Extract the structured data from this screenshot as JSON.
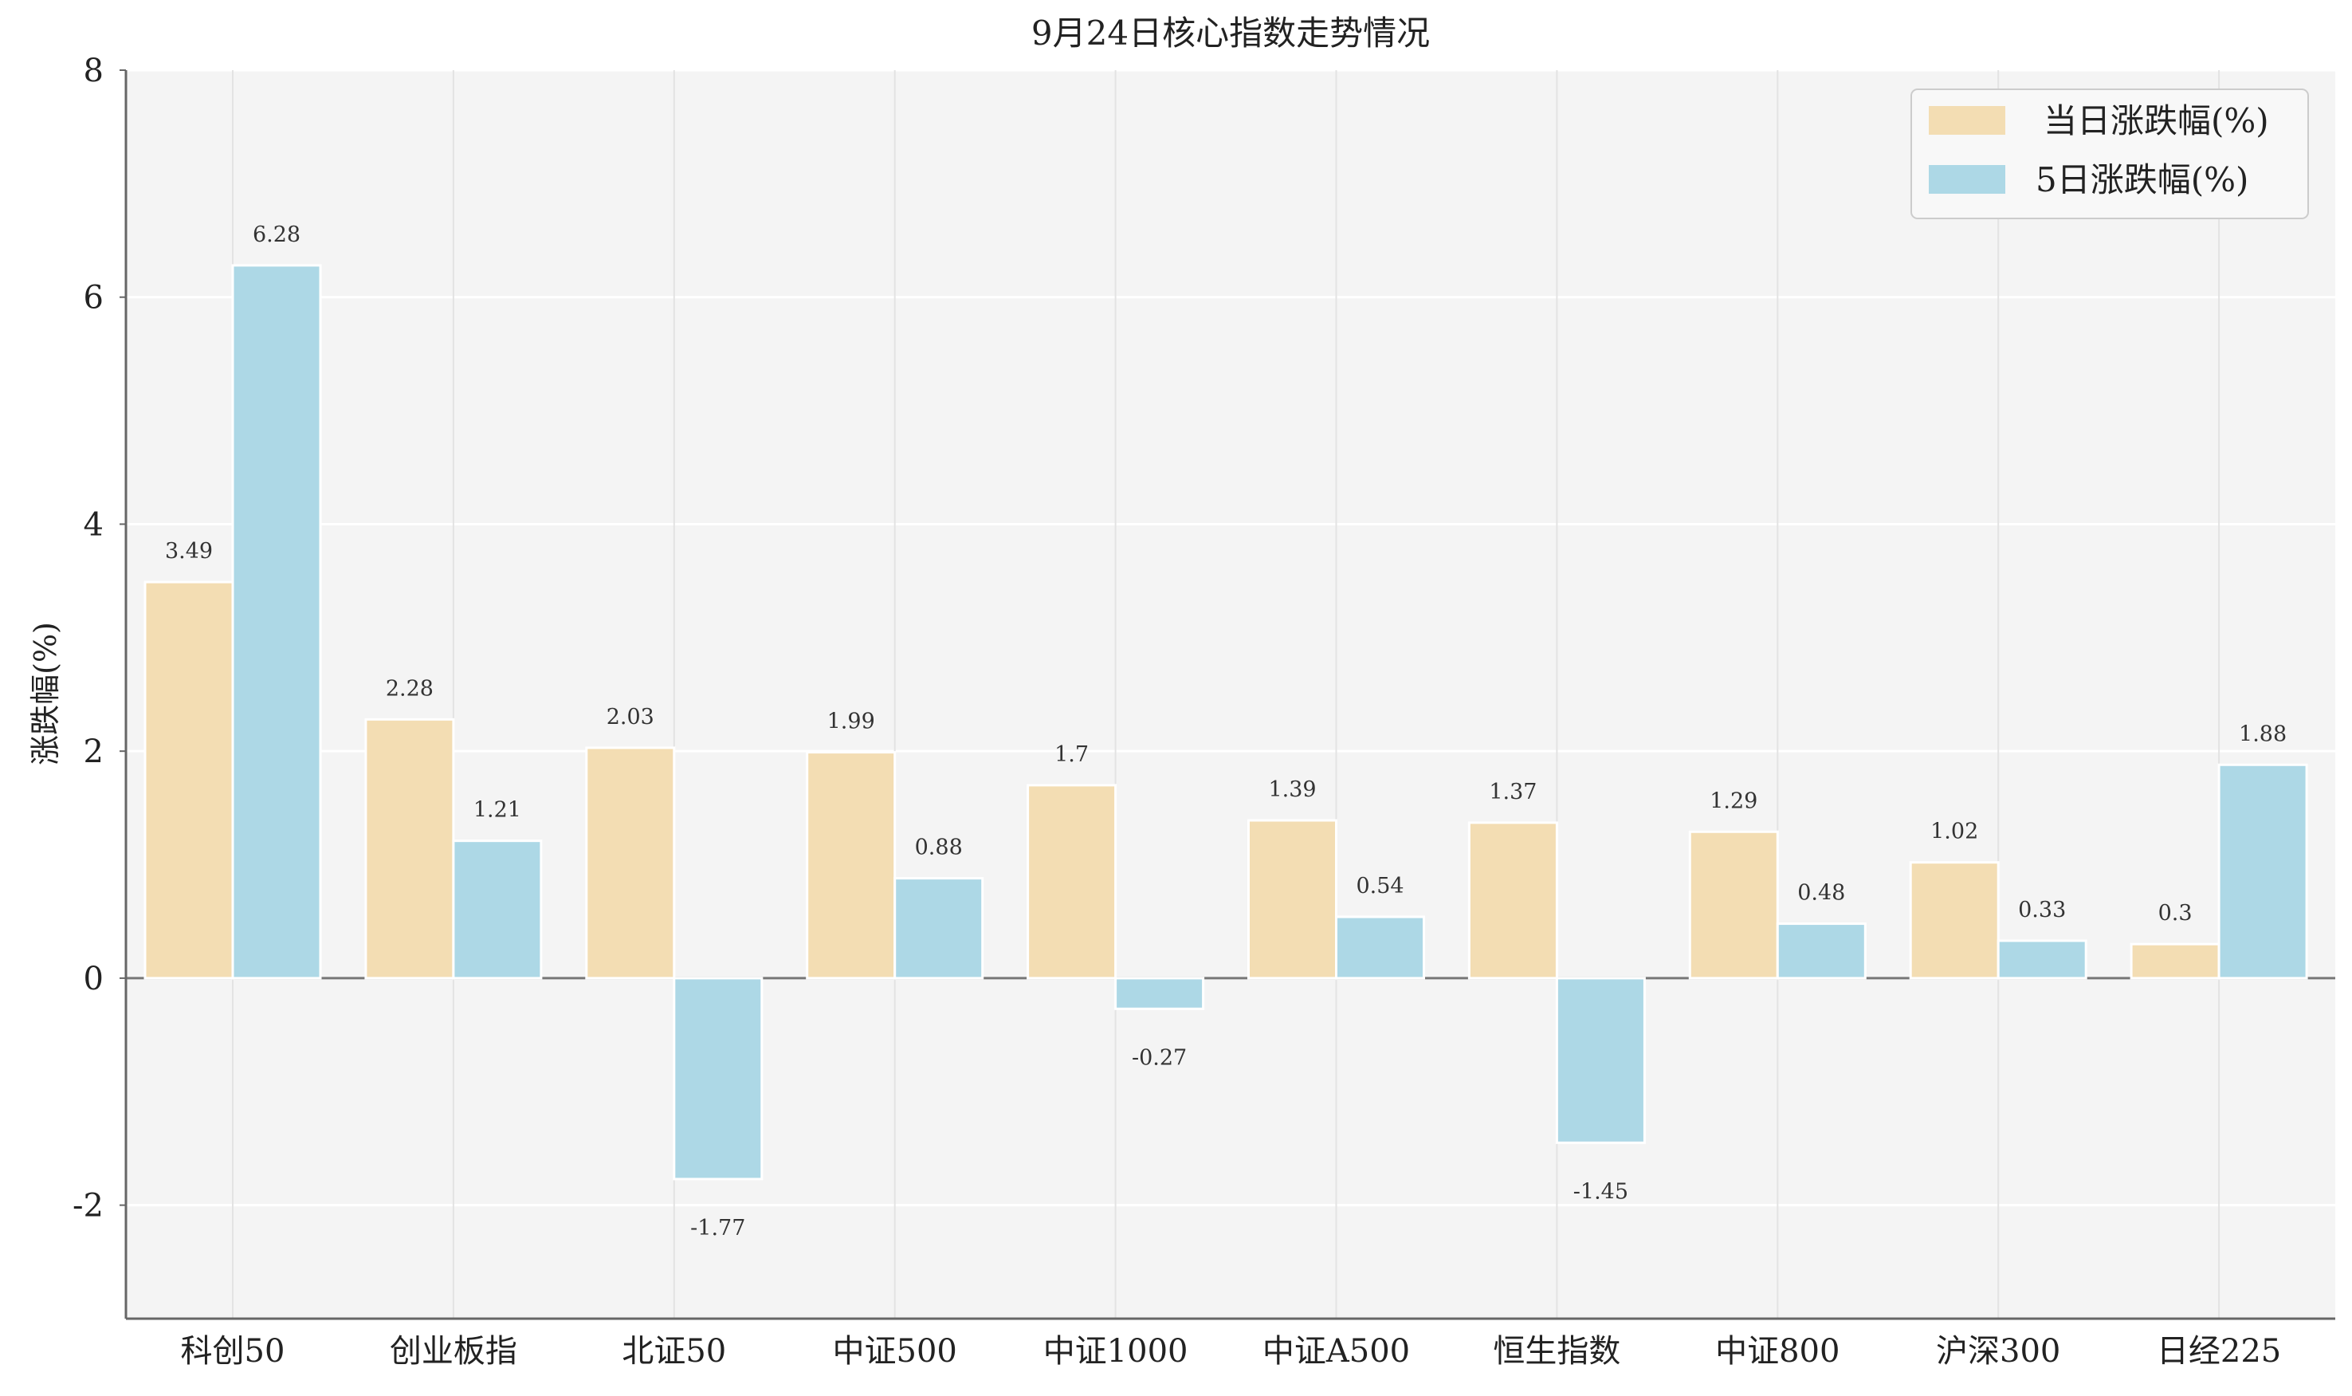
{
  "chart_data": {
    "type": "bar",
    "title": "9月24日核心指数走势情况",
    "xlabel": "",
    "ylabel": "涨跌幅(%)",
    "ylim": [
      -3,
      8
    ],
    "yticks": [
      -2,
      0,
      2,
      4,
      6,
      8
    ],
    "grid": true,
    "legend_position": "top-right",
    "categories": [
      "科创50",
      "创业板指",
      "北证50",
      "中证500",
      "中证1000",
      "中证A500",
      "恒生指数",
      "中证800",
      "沪深300",
      "日经225"
    ],
    "series": [
      {
        "name": "当日涨跌幅(%)",
        "color": "#f3ddb3",
        "values": [
          3.49,
          2.28,
          2.03,
          1.99,
          1.7,
          1.39,
          1.37,
          1.29,
          1.02,
          0.3
        ]
      },
      {
        "name": "5日涨跌幅(%)",
        "color": "#add8e6",
        "values": [
          6.28,
          1.21,
          -1.77,
          0.88,
          -0.27,
          0.54,
          -1.45,
          0.48,
          0.33,
          1.88
        ]
      }
    ]
  }
}
